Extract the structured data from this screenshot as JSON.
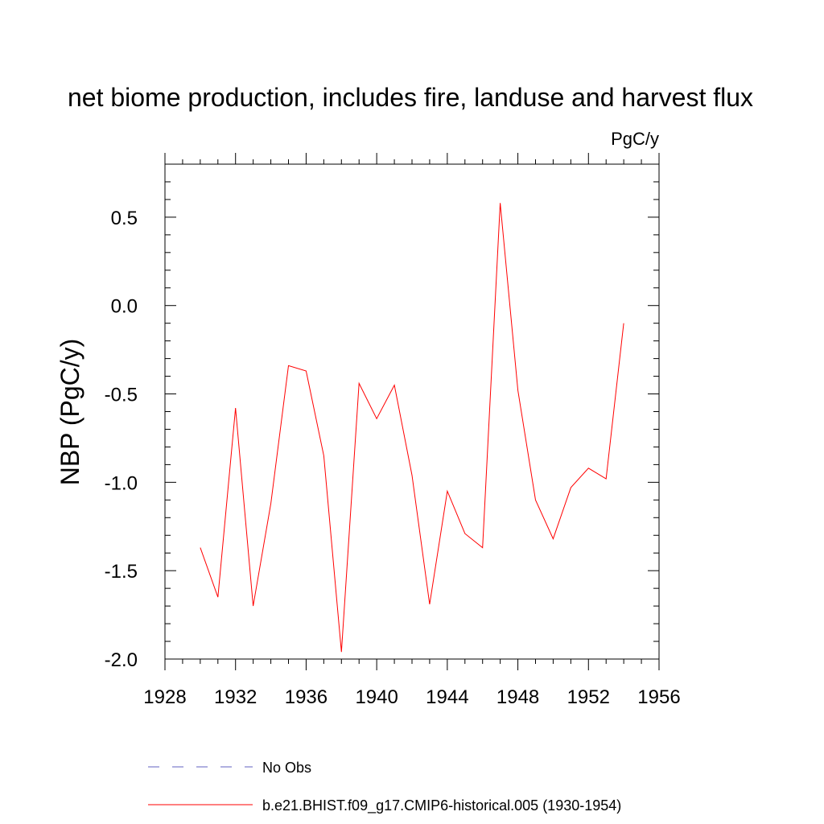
{
  "chart_data": {
    "type": "line",
    "title": "net biome production, includes fire, landuse and harvest flux",
    "units_label": "PgC/y",
    "ylabel": "NBP  (PgC/y)",
    "xlabel": "",
    "xlim": [
      1928,
      1956
    ],
    "ylim": [
      -2.0,
      0.8
    ],
    "x_ticks": [
      1928,
      1932,
      1936,
      1940,
      1944,
      1948,
      1952,
      1956
    ],
    "x_tick_labels": [
      "1928",
      "1932",
      "1936",
      "1940",
      "1944",
      "1948",
      "1952",
      "1956"
    ],
    "y_ticks": [
      -2.0,
      -1.5,
      -1.0,
      -0.5,
      0.0,
      0.5
    ],
    "y_tick_labels": [
      "-2.0",
      "-1.5",
      "-1.0",
      "-0.5",
      "0.0",
      "0.5"
    ],
    "grid": false,
    "legend_placement": "bottom",
    "legend": [
      {
        "label": "No Obs",
        "color": "#6060c0",
        "dash": "dashed"
      },
      {
        "label": "b.e21.BHIST.f09_g17.CMIP6-historical.005 (1930-1954)",
        "color": "#ff0000",
        "dash": "solid"
      }
    ],
    "series": [
      {
        "name": "b.e21.BHIST.f09_g17.CMIP6-historical.005 (1930-1954)",
        "color": "#ff0000",
        "x": [
          1930,
          1931,
          1932,
          1933,
          1934,
          1935,
          1936,
          1937,
          1938,
          1939,
          1940,
          1941,
          1942,
          1943,
          1944,
          1945,
          1946,
          1947,
          1948,
          1949,
          1950,
          1951,
          1952,
          1953,
          1954
        ],
        "y": [
          -1.37,
          -1.65,
          -0.58,
          -1.7,
          -1.12,
          -0.34,
          -0.37,
          -0.85,
          -1.96,
          -0.44,
          -0.64,
          -0.45,
          -0.96,
          -1.69,
          -1.05,
          -1.29,
          -1.37,
          0.58,
          -0.48,
          -1.1,
          -1.32,
          -1.03,
          -0.92,
          -0.98,
          -0.1
        ]
      }
    ]
  }
}
